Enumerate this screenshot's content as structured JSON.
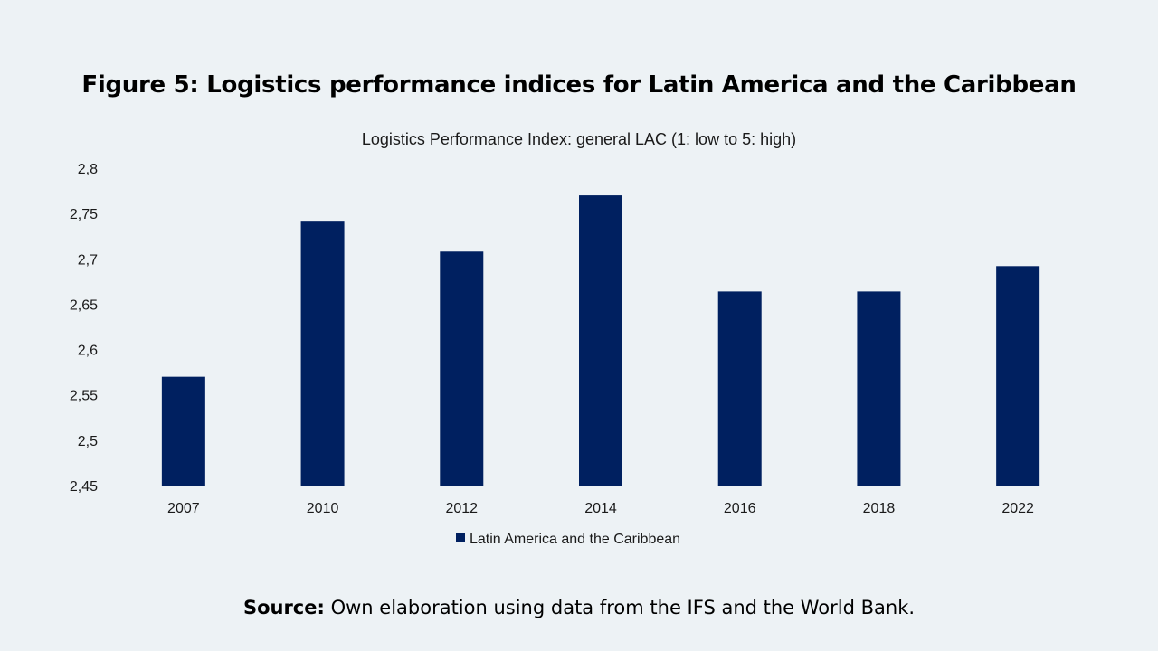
{
  "figure": {
    "title": "Figure 5: Logistics performance indices for Latin America and the Caribbean"
  },
  "source": {
    "label": "Source:",
    "text": " Own elaboration using data from the IFS and the World Bank."
  },
  "colors": {
    "bar": "#002060",
    "background": "#edf2f5",
    "axis": "#d9d9d9"
  },
  "chart_data": {
    "type": "bar",
    "title": "Logistics Performance Index: general LAC (1: low to 5: high)",
    "categories": [
      "2007",
      "2010",
      "2012",
      "2014",
      "2016",
      "2018",
      "2022"
    ],
    "series": [
      {
        "name": "Latin America and the Caribbean",
        "values": [
          2.57,
          2.742,
          2.708,
          2.77,
          2.664,
          2.664,
          2.692
        ]
      }
    ],
    "ylim": [
      2.45,
      2.8
    ],
    "yticks": [
      "2,45",
      "2,5",
      "2,55",
      "2,6",
      "2,65",
      "2,7",
      "2,75",
      "2,8"
    ],
    "grid": false,
    "legend": "bottom",
    "xlabel": "",
    "ylabel": ""
  }
}
